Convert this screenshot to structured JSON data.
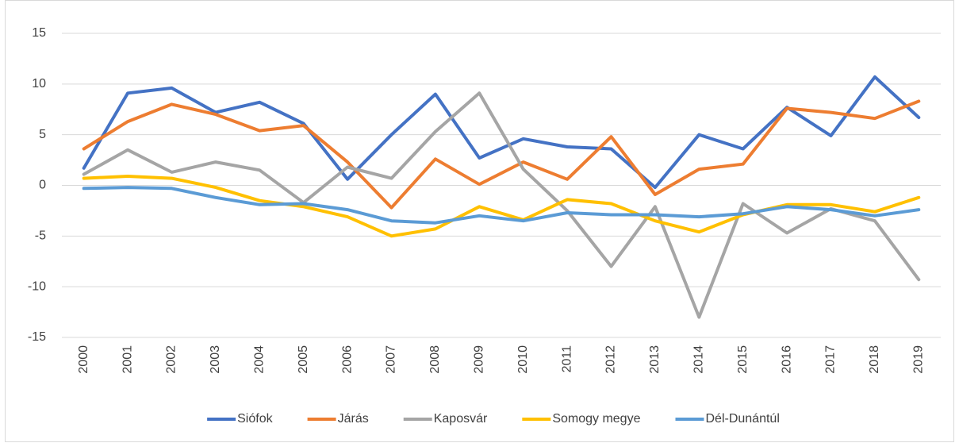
{
  "chart_data": {
    "type": "line",
    "categories": [
      "2000",
      "2001",
      "2002",
      "2003",
      "2004",
      "2005",
      "2006",
      "2007",
      "2008",
      "2009",
      "2010",
      "2011",
      "2012",
      "2013",
      "2014",
      "2015",
      "2016",
      "2017",
      "2018",
      "2019"
    ],
    "series": [
      {
        "name": "Siófok",
        "color": "#4472c4",
        "values": [
          1.7,
          9.1,
          9.6,
          7.2,
          8.2,
          6.1,
          0.6,
          5.0,
          9.0,
          2.7,
          4.6,
          3.8,
          3.6,
          -0.2,
          5.0,
          3.6,
          7.7,
          4.9,
          10.7,
          6.7
        ]
      },
      {
        "name": "Járás",
        "color": "#ed7d31",
        "values": [
          3.6,
          6.3,
          8.0,
          7.0,
          5.4,
          5.9,
          2.3,
          -2.2,
          2.6,
          0.1,
          2.3,
          0.6,
          4.8,
          -0.9,
          1.6,
          2.1,
          7.6,
          7.2,
          6.6,
          8.3
        ]
      },
      {
        "name": "Kaposvár",
        "color": "#a5a5a5",
        "values": [
          1.1,
          3.5,
          1.3,
          2.3,
          1.5,
          -1.7,
          1.8,
          0.7,
          5.3,
          9.1,
          1.6,
          -2.5,
          -8.0,
          -2.1,
          -13.0,
          -1.8,
          -4.7,
          -2.3,
          -3.5,
          -9.3
        ]
      },
      {
        "name": "Somogy megye",
        "color": "#ffc000",
        "values": [
          0.7,
          0.9,
          0.7,
          -0.2,
          -1.5,
          -2.1,
          -3.1,
          -5.0,
          -4.3,
          -2.1,
          -3.4,
          -1.4,
          -1.8,
          -3.5,
          -4.6,
          -2.9,
          -1.9,
          -1.9,
          -2.6,
          -1.2
        ]
      },
      {
        "name": "Dél-Dunántúl",
        "color": "#5b9bd5",
        "values": [
          -0.3,
          -0.2,
          -0.3,
          -1.2,
          -1.9,
          -1.8,
          -2.4,
          -3.5,
          -3.7,
          -3.0,
          -3.5,
          -2.7,
          -2.9,
          -2.9,
          -3.1,
          -2.8,
          -2.1,
          -2.4,
          -3.0,
          -2.4
        ]
      }
    ],
    "ylim": [
      -15,
      15
    ],
    "yticks": [
      -15,
      -10,
      -5,
      0,
      5,
      10,
      15
    ],
    "grid": true,
    "legend": "bottom"
  }
}
